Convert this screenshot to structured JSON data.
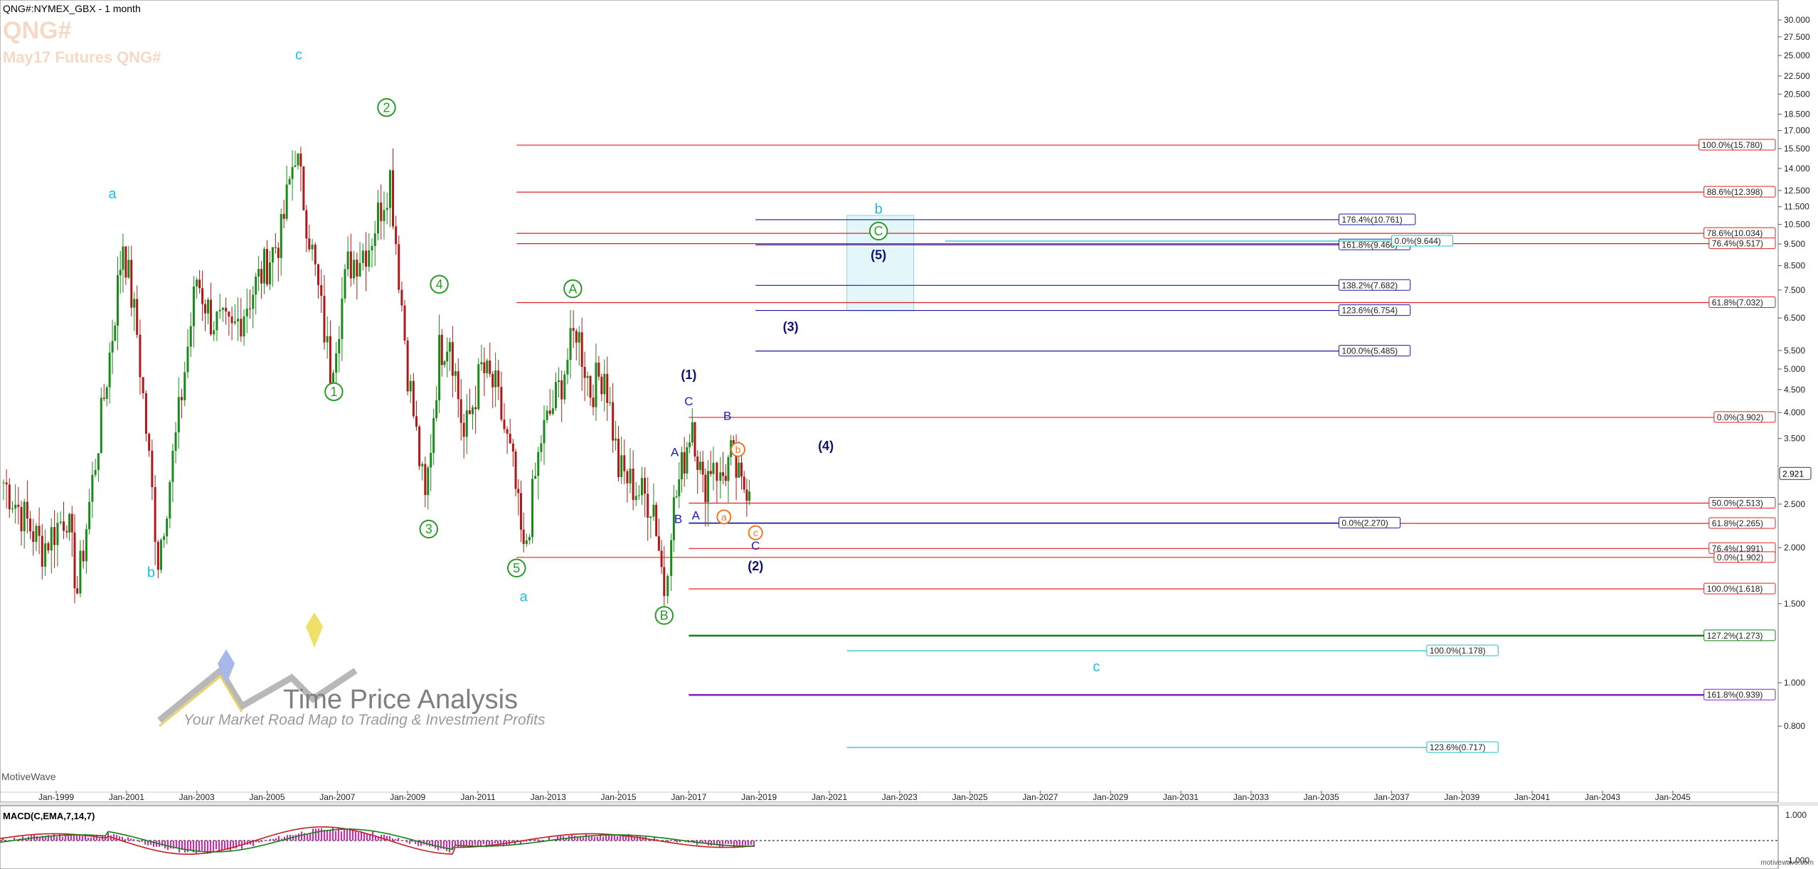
{
  "header": {
    "symbol": "QNG#:NYMEX_GBX - 1 month",
    "title": "QNG#",
    "subtitle": "May17 Futures QNG#"
  },
  "watermark": "MotiveWave",
  "brand": {
    "name": "Time Price Analysis",
    "tagline": "Your Market Road Map to Trading & Investment Profits"
  },
  "macd": {
    "label": "MACD(C,EMA,7,14,7)",
    "axis_labels": [
      "1.000",
      "-1.000"
    ]
  },
  "footer": "motivewave.com",
  "colors": {
    "up_bar": "#1a8a1a",
    "down_bar": "#b01818",
    "red_fib": "#e02020",
    "blue_fib": "#1a1aa0",
    "green_fib": "#108010",
    "purple_fib": "#8020c0",
    "cyan_fib": "#20c0c0",
    "box": "#c8eef6"
  },
  "chart_data": {
    "type": "ohlc",
    "scale": "log",
    "x_tick_labels": [
      "Jan-1999",
      "Jan-2001",
      "Jan-2003",
      "Jan-2005",
      "Jan-2007",
      "Jan-2009",
      "Jan-2011",
      "Jan-2013",
      "Jan-2015",
      "Jan-2017",
      "Jan-2019",
      "Jan-2021",
      "Jan-2023",
      "Jan-2025",
      "Jan-2027",
      "Jan-2029",
      "Jan-2031",
      "Jan-2033",
      "Jan-2035",
      "Jan-2037",
      "Jan-2039",
      "Jan-2041",
      "Jan-2043",
      "Jan-2045"
    ],
    "y_tick_labels": [
      "30.000",
      "27.500",
      "25.000",
      "22.500",
      "20.500",
      "18.500",
      "17.000",
      "15.500",
      "14.000",
      "12.500",
      "11.500",
      "10.500",
      "9.500",
      "8.500",
      "7.500",
      "6.500",
      "5.500",
      "5.000",
      "4.500",
      "4.000",
      "3.500",
      "2.500",
      "2.000",
      "1.500",
      "1.000",
      "0.800"
    ],
    "last_price": "2.921",
    "price_path": [
      [
        1997.5,
        2.8
      ],
      [
        1998.6,
        2.0
      ],
      [
        1999.3,
        2.4
      ],
      [
        1999.6,
        1.6
      ],
      [
        2000.2,
        3.5
      ],
      [
        2000.6,
        6.0
      ],
      [
        2000.9,
        9.7
      ],
      [
        2001.3,
        6.0
      ],
      [
        2001.9,
        1.9
      ],
      [
        2002.4,
        3.5
      ],
      [
        2003.0,
        8.0
      ],
      [
        2003.4,
        6.5
      ],
      [
        2004.0,
        6.0
      ],
      [
        2004.6,
        7.5
      ],
      [
        2005.4,
        10.0
      ],
      [
        2005.8,
        15.5
      ],
      [
        2006.2,
        10.0
      ],
      [
        2006.8,
        5.0
      ],
      [
        2007.3,
        8.5
      ],
      [
        2007.9,
        9.5
      ],
      [
        2008.5,
        13.5
      ],
      [
        2009.0,
        5.0
      ],
      [
        2009.5,
        2.5
      ],
      [
        2009.9,
        5.5
      ],
      [
        2010.2,
        6.0
      ],
      [
        2010.6,
        3.5
      ],
      [
        2011.1,
        5.0
      ],
      [
        2011.5,
        4.5
      ],
      [
        2012.0,
        3.0
      ],
      [
        2012.3,
        1.9
      ],
      [
        2012.8,
        3.5
      ],
      [
        2013.3,
        4.5
      ],
      [
        2013.8,
        6.2
      ],
      [
        2014.2,
        4.5
      ],
      [
        2014.6,
        5.0
      ],
      [
        2015.0,
        3.0
      ],
      [
        2015.5,
        2.7
      ],
      [
        2016.0,
        2.5
      ],
      [
        2016.3,
        1.62
      ],
      [
        2016.5,
        2.3
      ],
      [
        2016.8,
        3.0
      ],
      [
        2017.1,
        3.9
      ],
      [
        2017.4,
        2.7
      ],
      [
        2017.7,
        3.2
      ],
      [
        2017.9,
        2.8
      ],
      [
        2018.2,
        3.2
      ],
      [
        2018.5,
        2.7
      ],
      [
        2018.8,
        2.9
      ]
    ],
    "fib_lines": [
      {
        "label": "100.0%(15.780)",
        "value": 15.78,
        "from": 2012.1,
        "group": "red"
      },
      {
        "label": "88.6%(12.398)",
        "value": 12.398,
        "from": 2012.1,
        "group": "red"
      },
      {
        "label": "78.6%(10.034)",
        "value": 10.034,
        "from": 2012.1,
        "group": "red"
      },
      {
        "label": "76.4%(9.517)",
        "value": 9.517,
        "from": 2012.1,
        "group": "red"
      },
      {
        "label": "61.8%(7.032)",
        "value": 7.032,
        "from": 2012.1,
        "group": "red"
      },
      {
        "label": "0.0%(3.902)",
        "value": 3.902,
        "from": 2017.0,
        "group": "red"
      },
      {
        "label": "50.0%(2.513)",
        "value": 2.513,
        "from": 2017.0,
        "group": "red"
      },
      {
        "label": "61.8%(2.265)",
        "value": 2.265,
        "from": 2017.0,
        "group": "red"
      },
      {
        "label": "76.4%(1.991)",
        "value": 1.991,
        "from": 2017.0,
        "group": "red"
      },
      {
        "label": "0.0%(1.902)",
        "value": 1.902,
        "from": 2012.1,
        "group": "red"
      },
      {
        "label": "100.0%(1.618)",
        "value": 1.618,
        "from": 2017.0,
        "group": "red"
      },
      {
        "label": "176.4%(10.761)",
        "value": 10.761,
        "from": 2018.9,
        "to": 2035.5,
        "group": "blue"
      },
      {
        "label": "161.8%(9.460)",
        "value": 9.46,
        "from": 2018.9,
        "to": 2035.5,
        "group": "blue"
      },
      {
        "label": "138.2%(7.682)",
        "value": 7.682,
        "from": 2018.9,
        "to": 2035.5,
        "group": "blue"
      },
      {
        "label": "123.6%(6.754)",
        "value": 6.754,
        "from": 2018.9,
        "to": 2035.5,
        "group": "blue"
      },
      {
        "label": "100.0%(5.485)",
        "value": 5.485,
        "from": 2018.9,
        "to": 2035.5,
        "group": "blue"
      },
      {
        "label": "0.0%(2.270)",
        "value": 2.27,
        "from": 2017.0,
        "to": 2035.5,
        "group": "blue"
      },
      {
        "label": "0.0%(9.644)",
        "value": 9.644,
        "from": 2024.3,
        "to": 2037.0,
        "group": "cyan"
      },
      {
        "label": "100.0%(1.178)",
        "value": 1.178,
        "from": 2021.5,
        "to": 2038.0,
        "group": "cyan"
      },
      {
        "label": "123.6%(0.717)",
        "value": 0.717,
        "from": 2021.5,
        "to": 2038.0,
        "group": "cyan"
      },
      {
        "label": "127.2%(1.273)",
        "value": 1.273,
        "from": 2017.0,
        "group": "green"
      },
      {
        "label": "161.8%(0.939)",
        "value": 0.939,
        "from": 2017.0,
        "group": "purple"
      }
    ],
    "target_box": {
      "x0": 2021.5,
      "x1": 2023.4,
      "y0": 6.75,
      "y1": 11.0
    },
    "wave_labels": [
      {
        "text": "c",
        "x": 2005.9,
        "y": 24.5,
        "color": "#22bbdd",
        "size": 20
      },
      {
        "text": "a",
        "x": 2000.6,
        "y": 12.0,
        "color": "#22bbdd",
        "size": 20
      },
      {
        "text": "b",
        "x": 2001.7,
        "y": 1.72,
        "color": "#22bbdd",
        "size": 20
      },
      {
        "text": "a",
        "x": 2012.3,
        "y": 1.52,
        "color": "#22bbdd",
        "size": 20
      },
      {
        "text": "b",
        "x": 2022.4,
        "y": 11.1,
        "color": "#22bbdd",
        "size": 20
      },
      {
        "text": "c",
        "x": 2028.6,
        "y": 1.06,
        "color": "#22bbdd",
        "size": 20
      },
      {
        "text": "2",
        "x": 2008.4,
        "y": 18.7,
        "color": "#2a9a2a",
        "size": 18,
        "circled": true
      },
      {
        "text": "1",
        "x": 2006.9,
        "y": 4.35,
        "color": "#2a9a2a",
        "size": 18,
        "circled": true
      },
      {
        "text": "4",
        "x": 2009.9,
        "y": 7.55,
        "color": "#2a9a2a",
        "size": 18,
        "circled": true
      },
      {
        "text": "3",
        "x": 2009.6,
        "y": 2.15,
        "color": "#2a9a2a",
        "size": 18,
        "circled": true
      },
      {
        "text": "5",
        "x": 2012.1,
        "y": 1.76,
        "color": "#2a9a2a",
        "size": 18,
        "circled": true
      },
      {
        "text": "A",
        "x": 2013.7,
        "y": 7.38,
        "color": "#2a9a2a",
        "size": 18,
        "circled": true
      },
      {
        "text": "B",
        "x": 2016.3,
        "y": 1.38,
        "color": "#2a9a2a",
        "size": 18,
        "circled": true
      },
      {
        "text": "C",
        "x": 2022.4,
        "y": 9.92,
        "color": "#2a9a2a",
        "size": 18,
        "circled": true
      },
      {
        "text": "(5)",
        "x": 2022.4,
        "y": 8.78,
        "color": "#101070",
        "size": 18,
        "bold": true
      },
      {
        "text": "(3)",
        "x": 2019.9,
        "y": 6.08,
        "color": "#101070",
        "size": 18,
        "bold": true
      },
      {
        "text": "(1)",
        "x": 2017.0,
        "y": 4.75,
        "color": "#101070",
        "size": 18,
        "bold": true
      },
      {
        "text": "(4)",
        "x": 2020.9,
        "y": 3.3,
        "color": "#101070",
        "size": 18,
        "bold": true
      },
      {
        "text": "(2)",
        "x": 2018.9,
        "y": 1.78,
        "color": "#101070",
        "size": 18,
        "bold": true
      },
      {
        "text": "C",
        "x": 2017.0,
        "y": 4.15,
        "color": "#1a1ac0",
        "size": 17
      },
      {
        "text": "B",
        "x": 2018.1,
        "y": 3.85,
        "color": "#1a1ac0",
        "size": 17
      },
      {
        "text": "A",
        "x": 2016.6,
        "y": 3.2,
        "color": "#1a1ac0",
        "size": 17
      },
      {
        "text": "B",
        "x": 2016.7,
        "y": 2.27,
        "color": "#1a1ac0",
        "size": 17
      },
      {
        "text": "A",
        "x": 2017.2,
        "y": 2.31,
        "color": "#1a1ac0",
        "size": 17
      },
      {
        "text": "C",
        "x": 2018.9,
        "y": 1.98,
        "color": "#1a1ac0",
        "size": 17
      },
      {
        "text": "b",
        "x": 2018.4,
        "y": 3.25,
        "color": "#ee7722",
        "size": 14,
        "circled": true
      },
      {
        "text": "a",
        "x": 2018.0,
        "y": 2.3,
        "color": "#ee7722",
        "size": 14,
        "circled": true
      },
      {
        "text": "c",
        "x": 2018.9,
        "y": 2.12,
        "color": "#ee7722",
        "size": 14,
        "circled": true
      }
    ]
  }
}
